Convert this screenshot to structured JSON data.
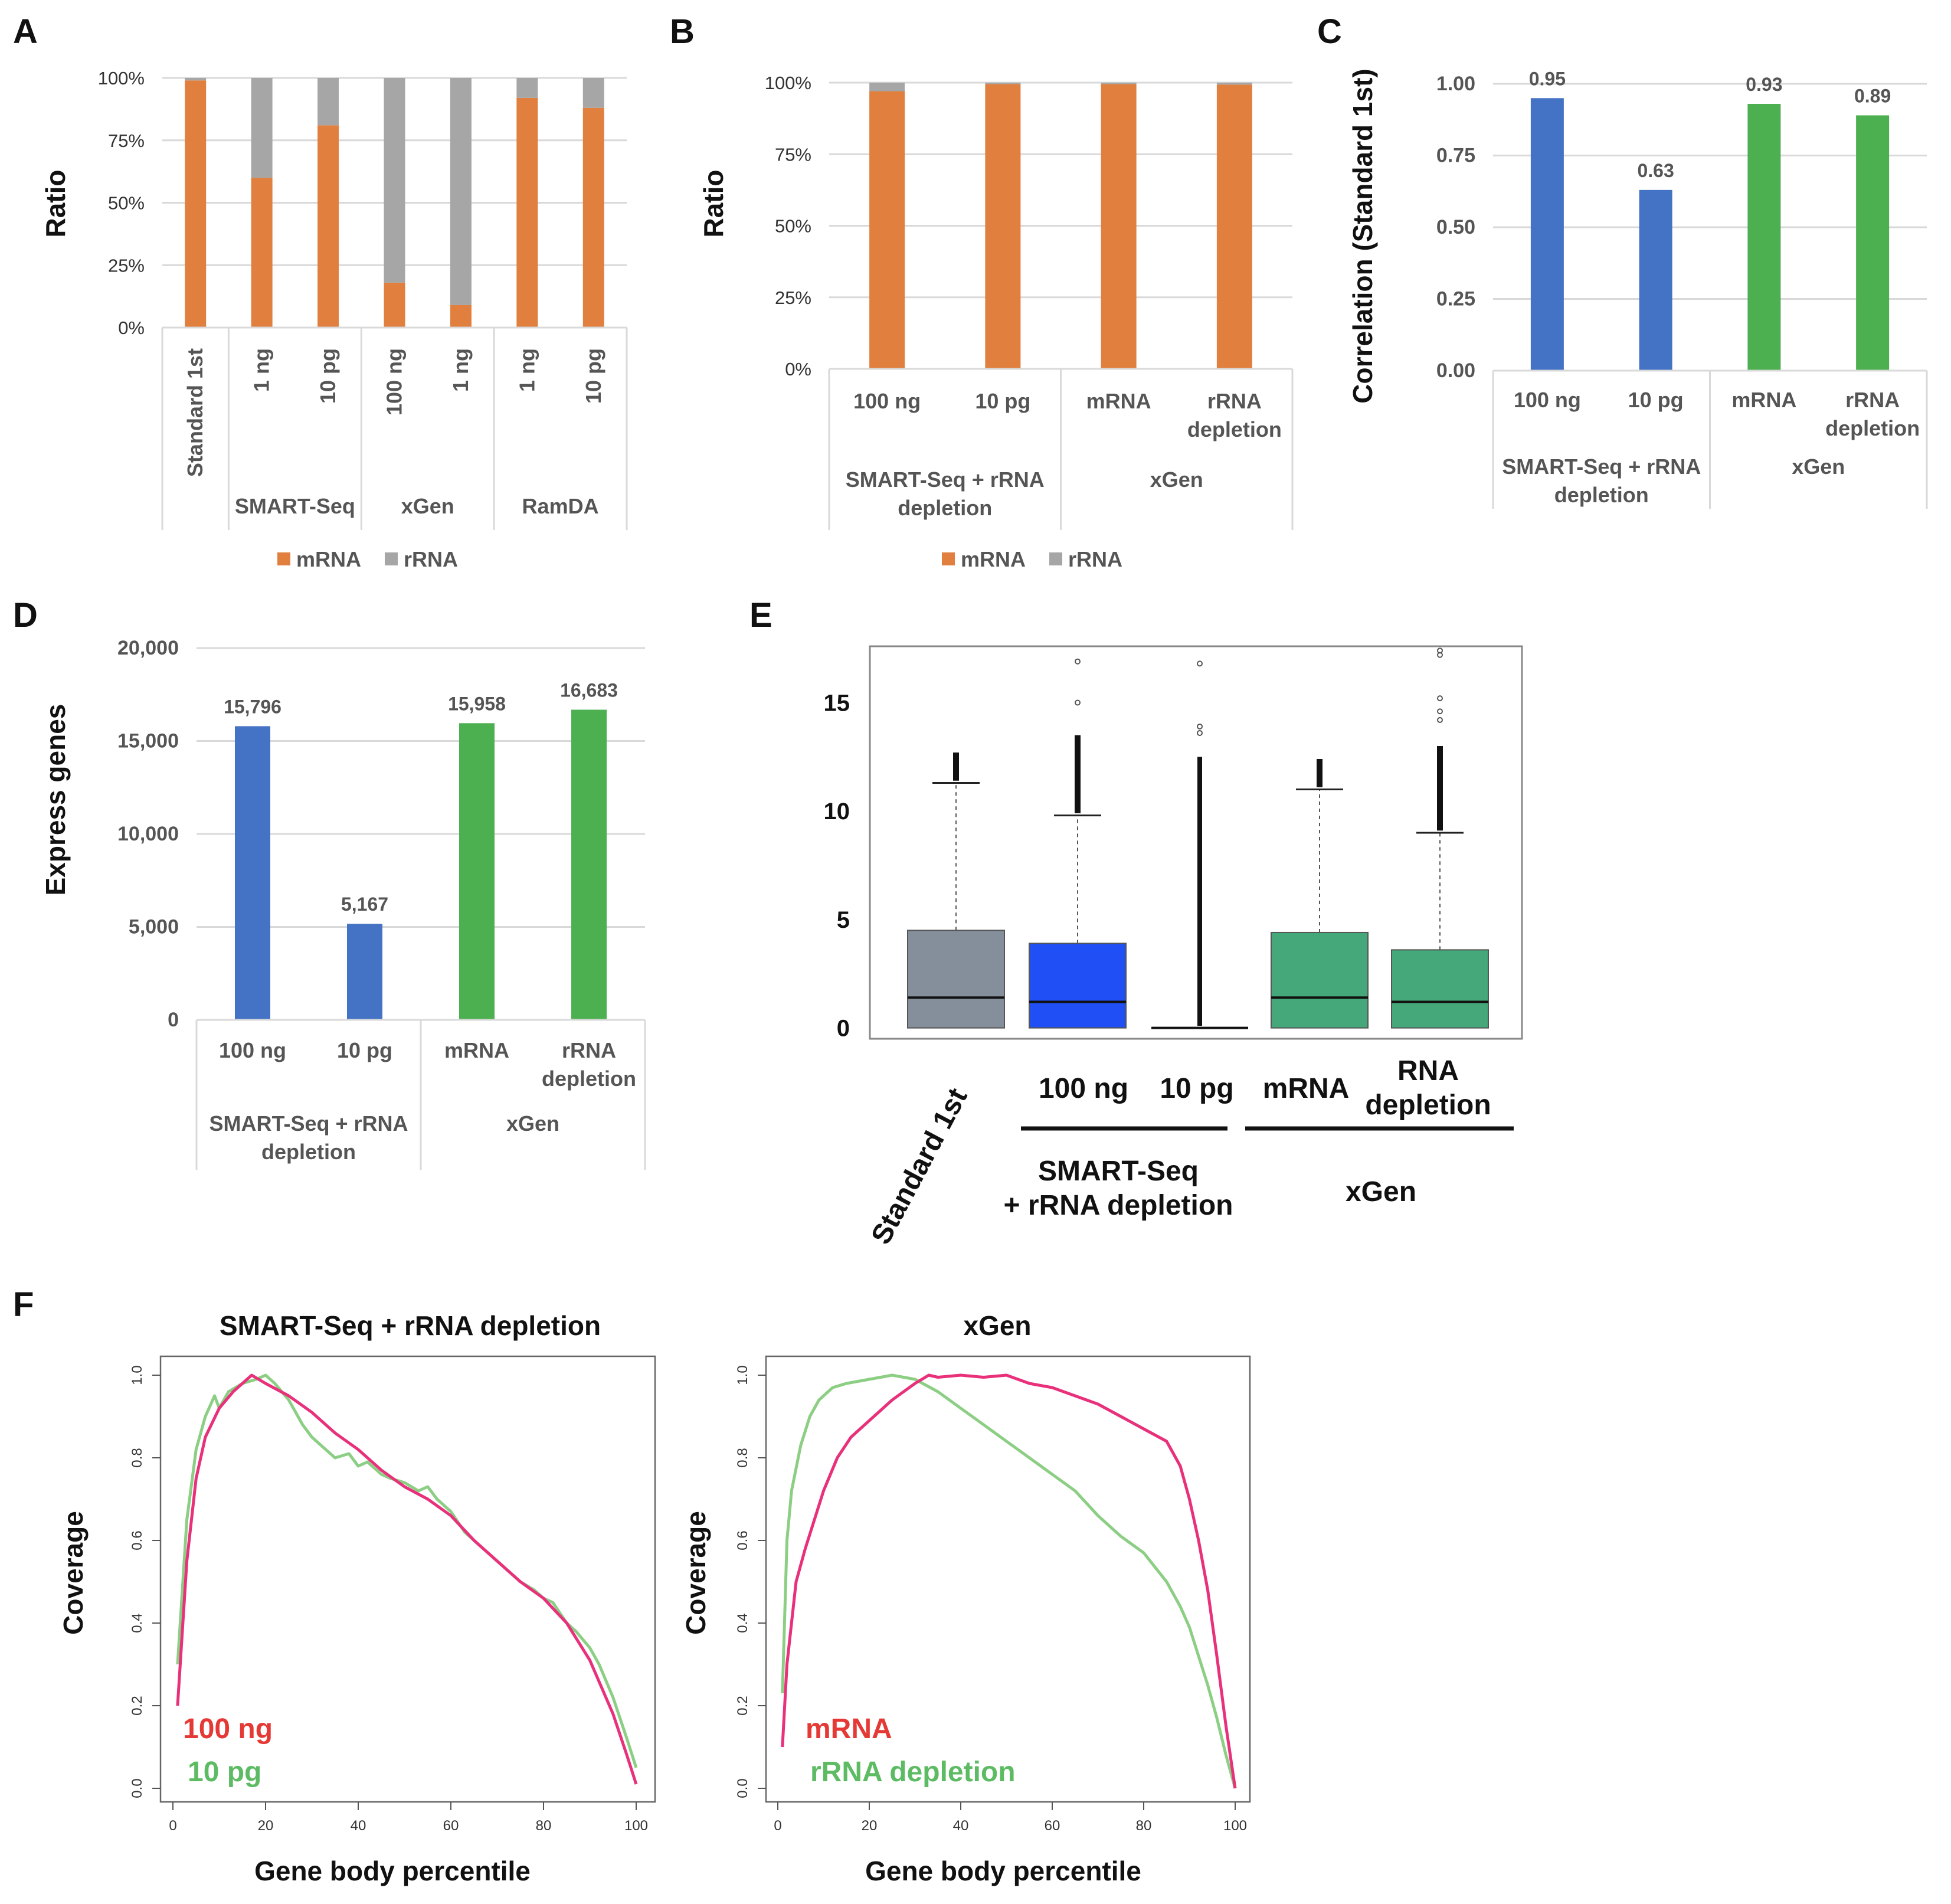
{
  "colors": {
    "mrna": "#E07F3E",
    "rrna": "#A6A6A6",
    "blue": "#4472C4",
    "green": "#4CAF50",
    "box_gray": "#858E9B",
    "box_blue": "#1F4FF5",
    "box_green": "#44A87A",
    "line_red": "#E8307B",
    "line_green": "#8CCF84",
    "leg_red": "#E53935",
    "leg_green": "#5DBB63"
  },
  "panel_labels": [
    "A",
    "B",
    "C",
    "D",
    "E",
    "F"
  ],
  "chart_data": [
    {
      "id": "A",
      "type": "bar",
      "stacked": true,
      "ylabel": "Ratio",
      "yticks": [
        "0%",
        "25%",
        "50%",
        "75%",
        "100%"
      ],
      "ylim": [
        0,
        100
      ],
      "categories": [
        "Standard 1st",
        "1 ng",
        "10 pg",
        "100 ng",
        "1 ng",
        "1 ng",
        "10 pg"
      ],
      "groups": [
        {
          "label": "",
          "span": [
            0,
            0
          ]
        },
        {
          "label": "SMART-Seq",
          "span": [
            1,
            2
          ]
        },
        {
          "label": "xGen",
          "span": [
            3,
            4
          ]
        },
        {
          "label": "RamDA",
          "span": [
            5,
            6
          ]
        }
      ],
      "series": [
        {
          "name": "mRNA",
          "values": [
            99,
            60,
            81,
            18,
            9,
            92,
            88
          ]
        },
        {
          "name": "rRNA",
          "values": [
            1,
            40,
            19,
            82,
            91,
            8,
            12
          ]
        }
      ],
      "legend": [
        "mRNA",
        "rRNA"
      ]
    },
    {
      "id": "B",
      "type": "bar",
      "stacked": true,
      "ylabel": "Ratio",
      "yticks": [
        "0%",
        "25%",
        "50%",
        "75%",
        "100%"
      ],
      "ylim": [
        0,
        100
      ],
      "categories": [
        "100 ng",
        "10 pg",
        "mRNA",
        "rRNA depletion"
      ],
      "groups": [
        {
          "label": "SMART-Seq + rRNA depletion",
          "span": [
            0,
            1
          ]
        },
        {
          "label": "xGen",
          "span": [
            2,
            3
          ]
        }
      ],
      "series": [
        {
          "name": "mRNA",
          "values": [
            97,
            99.5,
            99.5,
            99.3
          ]
        },
        {
          "name": "rRNA",
          "values": [
            3,
            0.5,
            0.5,
            0.7
          ]
        }
      ],
      "legend": [
        "mRNA",
        "rRNA"
      ]
    },
    {
      "id": "C",
      "type": "bar",
      "ylabel": "Correlation (Standard 1st)",
      "yticks": [
        "0.00",
        "0.25",
        "0.50",
        "0.75",
        "1.00"
      ],
      "ylim": [
        0,
        1
      ],
      "categories": [
        "100 ng",
        "10 pg",
        "mRNA",
        "rRNA depletion"
      ],
      "groups": [
        {
          "label": "SMART-Seq + rRNA depletion",
          "span": [
            0,
            1
          ]
        },
        {
          "label": "xGen",
          "span": [
            2,
            3
          ]
        }
      ],
      "values": [
        0.95,
        0.63,
        0.93,
        0.89
      ],
      "labels": [
        "0.95",
        "0.63",
        "0.93",
        "0.89"
      ]
    },
    {
      "id": "D",
      "type": "bar",
      "ylabel": "Express genes",
      "yticks": [
        "0",
        "5,000",
        "10,000",
        "15,000",
        "20,000"
      ],
      "ylim": [
        0,
        20000
      ],
      "categories": [
        "100 ng",
        "10 pg",
        "mRNA",
        "rRNA depletion"
      ],
      "groups": [
        {
          "label": "SMART-Seq + rRNA depletion",
          "span": [
            0,
            1
          ]
        },
        {
          "label": "xGen",
          "span": [
            2,
            3
          ]
        }
      ],
      "values": [
        15796,
        5167,
        15958,
        16683
      ],
      "labels": [
        "15,796",
        "5,167",
        "15,958",
        "16,683"
      ]
    },
    {
      "id": "E",
      "type": "box",
      "yticks": [
        "0",
        "5",
        "10",
        "15"
      ],
      "ylim": [
        -0.5,
        17.6
      ],
      "categories": [
        "Standard 1st",
        "100 ng",
        "10 pg",
        "mRNA",
        "RNA depletion"
      ],
      "groups": [
        {
          "label": "SMART-Seq + rRNA depletion",
          "span": [
            1,
            2
          ]
        },
        {
          "label": "xGen",
          "span": [
            3,
            4
          ]
        }
      ],
      "boxes": [
        {
          "min": 0,
          "q1": 0,
          "median": 1.4,
          "q3": 4.5,
          "upper": 11.3,
          "outliers_from": 11.4,
          "outliers_to": 12.7,
          "extreme": []
        },
        {
          "min": 0,
          "q1": 0,
          "median": 1.2,
          "q3": 3.9,
          "upper": 9.8,
          "outliers_from": 9.9,
          "outliers_to": 13.5,
          "extreme": [
            15.0,
            16.9
          ]
        },
        {
          "min": 0,
          "q1": 0,
          "median": 0,
          "q3": 0,
          "upper": 0,
          "outliers_from": 0.1,
          "outliers_to": 12.5,
          "extreme": [
            13.6,
            13.9,
            16.8
          ]
        },
        {
          "min": 0,
          "q1": 0,
          "median": 1.4,
          "q3": 4.4,
          "upper": 11.0,
          "outliers_from": 11.1,
          "outliers_to": 12.4,
          "extreme": []
        },
        {
          "min": 0,
          "q1": 0,
          "median": 1.2,
          "q3": 3.6,
          "upper": 9.0,
          "outliers_from": 9.1,
          "outliers_to": 13.0,
          "extreme": [
            14.2,
            14.6,
            15.2,
            17.2,
            17.4
          ]
        }
      ]
    },
    {
      "id": "F1",
      "type": "line",
      "title": "SMART-Seq + rRNA depletion",
      "xlabel": "Gene body percentile",
      "ylabel": "Coverage",
      "xlim": [
        0,
        100
      ],
      "ylim": [
        0,
        1
      ],
      "xticks": [
        "0",
        "20",
        "40",
        "60",
        "80",
        "100"
      ],
      "yticks": [
        "0.0",
        "0.2",
        "0.4",
        "0.6",
        "0.8",
        "1.0"
      ],
      "series": [
        {
          "name": "100 ng",
          "x": [
            1,
            3,
            5,
            7,
            10,
            13,
            16,
            17,
            20,
            25,
            30,
            35,
            40,
            45,
            50,
            55,
            60,
            65,
            70,
            75,
            80,
            85,
            90,
            95,
            98,
            100
          ],
          "y": [
            0.2,
            0.55,
            0.75,
            0.85,
            0.92,
            0.96,
            0.99,
            1.0,
            0.98,
            0.95,
            0.91,
            0.86,
            0.82,
            0.77,
            0.73,
            0.7,
            0.66,
            0.6,
            0.55,
            0.5,
            0.46,
            0.4,
            0.31,
            0.18,
            0.08,
            0.01
          ]
        },
        {
          "name": "10 pg",
          "x": [
            1,
            3,
            5,
            7,
            9,
            10,
            12,
            15,
            18,
            20,
            22,
            25,
            28,
            30,
            33,
            35,
            38,
            40,
            42,
            45,
            47,
            50,
            53,
            55,
            57,
            60,
            63,
            65,
            68,
            70,
            73,
            75,
            78,
            80,
            82,
            85,
            87,
            90,
            92,
            95,
            98,
            100
          ],
          "y": [
            0.3,
            0.65,
            0.82,
            0.9,
            0.95,
            0.92,
            0.96,
            0.98,
            0.99,
            1.0,
            0.98,
            0.94,
            0.88,
            0.85,
            0.82,
            0.8,
            0.81,
            0.78,
            0.79,
            0.76,
            0.75,
            0.74,
            0.72,
            0.73,
            0.7,
            0.67,
            0.62,
            0.6,
            0.57,
            0.55,
            0.52,
            0.5,
            0.48,
            0.46,
            0.45,
            0.4,
            0.38,
            0.34,
            0.3,
            0.22,
            0.12,
            0.05
          ]
        }
      ],
      "legend": [
        "100 ng",
        "10 pg"
      ]
    },
    {
      "id": "F2",
      "type": "line",
      "title": "xGen",
      "xlabel": "Gene body percentile",
      "ylabel": "Coverage",
      "xlim": [
        0,
        100
      ],
      "ylim": [
        0,
        1
      ],
      "xticks": [
        "0",
        "20",
        "40",
        "60",
        "80",
        "100"
      ],
      "yticks": [
        "0.0",
        "0.2",
        "0.4",
        "0.6",
        "0.8",
        "1.0"
      ],
      "series": [
        {
          "name": "mRNA",
          "x": [
            1,
            2,
            4,
            6,
            8,
            10,
            13,
            16,
            20,
            25,
            30,
            33,
            35,
            40,
            45,
            50,
            55,
            60,
            65,
            70,
            75,
            80,
            85,
            88,
            90,
            92,
            94,
            96,
            98,
            100
          ],
          "y": [
            0.1,
            0.3,
            0.5,
            0.58,
            0.65,
            0.72,
            0.8,
            0.85,
            0.89,
            0.94,
            0.98,
            1.0,
            0.995,
            1.0,
            0.995,
            1.0,
            0.98,
            0.97,
            0.95,
            0.93,
            0.9,
            0.87,
            0.84,
            0.78,
            0.7,
            0.6,
            0.48,
            0.32,
            0.15,
            0.0
          ]
        },
        {
          "name": "rRNA depletion",
          "x": [
            1,
            2,
            3,
            5,
            7,
            9,
            12,
            15,
            20,
            25,
            30,
            35,
            40,
            45,
            50,
            55,
            60,
            65,
            70,
            75,
            80,
            85,
            88,
            90,
            92,
            94,
            96,
            98,
            100
          ],
          "y": [
            0.23,
            0.6,
            0.72,
            0.83,
            0.9,
            0.94,
            0.97,
            0.98,
            0.99,
            1.0,
            0.99,
            0.96,
            0.92,
            0.88,
            0.84,
            0.8,
            0.76,
            0.72,
            0.66,
            0.61,
            0.57,
            0.5,
            0.44,
            0.39,
            0.32,
            0.25,
            0.17,
            0.08,
            0.0
          ]
        }
      ],
      "legend": [
        "mRNA",
        "rRNA depletion"
      ]
    }
  ]
}
